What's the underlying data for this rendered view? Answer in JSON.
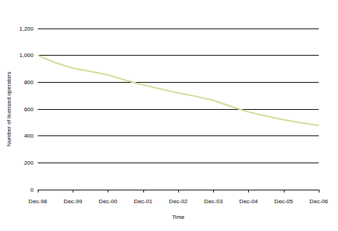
{
  "chart_data": {
    "type": "line",
    "x_label": "Time",
    "y_label": "Number of licensed operators",
    "categories": [
      "Dec-98",
      null,
      "Dec-99",
      null,
      "Dec-00",
      null,
      "Dec-01",
      null,
      "Dec-02",
      null,
      "Dec-03",
      null,
      "Dec-04",
      null,
      "Dec-05",
      null,
      "Dec-06"
    ],
    "values": [
      1000,
      945,
      905,
      880,
      855,
      815,
      780,
      750,
      720,
      695,
      665,
      620,
      578,
      548,
      520,
      498,
      478
    ],
    "color": "#cddc94",
    "ylim": [
      0,
      1200
    ],
    "yticks": [
      0,
      200,
      400,
      600,
      800,
      1000,
      1200
    ],
    "grid": true
  }
}
